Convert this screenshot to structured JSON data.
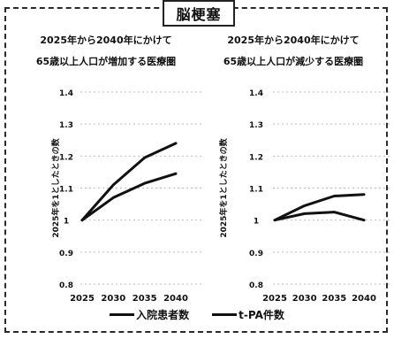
{
  "page_title": "脳梗塞",
  "legend": {
    "admissions": "入院患者数",
    "tpa": "t-PA件数"
  },
  "colors": {
    "line": "#111111",
    "grid": "#bdbdbd"
  },
  "chart_data": [
    {
      "type": "line",
      "title": "2025年から2040年にかけて",
      "subtitle": "65歳以上人口が増加する医療圏",
      "xlabel": "",
      "ylabel": "2025年を1としたときの数",
      "x": [
        "2025",
        "2030",
        "2035",
        "2040"
      ],
      "ylim": [
        0.8,
        1.4
      ],
      "yticks": [
        "1.4",
        "1.3",
        "1.2",
        "1.1",
        "1",
        "0.9",
        "0.8"
      ],
      "grid": true,
      "series": [
        {
          "name": "t-PA件数",
          "values": [
            1.0,
            1.11,
            1.195,
            1.24
          ]
        },
        {
          "name": "入院患者数",
          "values": [
            1.0,
            1.07,
            1.115,
            1.145
          ]
        }
      ]
    },
    {
      "type": "line",
      "title": "2025年から2040年にかけて",
      "subtitle": "65歳以上人口が減少する医療圏",
      "xlabel": "",
      "ylabel": "2025年を1としたときの数",
      "x": [
        "2025",
        "2030",
        "2035",
        "2040"
      ],
      "ylim": [
        0.8,
        1.4
      ],
      "yticks": [
        "1.4",
        "1.3",
        "1.2",
        "1.1",
        "1",
        "0.9",
        "0.8"
      ],
      "grid": true,
      "series": [
        {
          "name": "t-PA件数",
          "values": [
            1.0,
            1.045,
            1.075,
            1.08
          ]
        },
        {
          "name": "入院患者数",
          "values": [
            1.0,
            1.02,
            1.025,
            1.0
          ]
        }
      ]
    }
  ]
}
